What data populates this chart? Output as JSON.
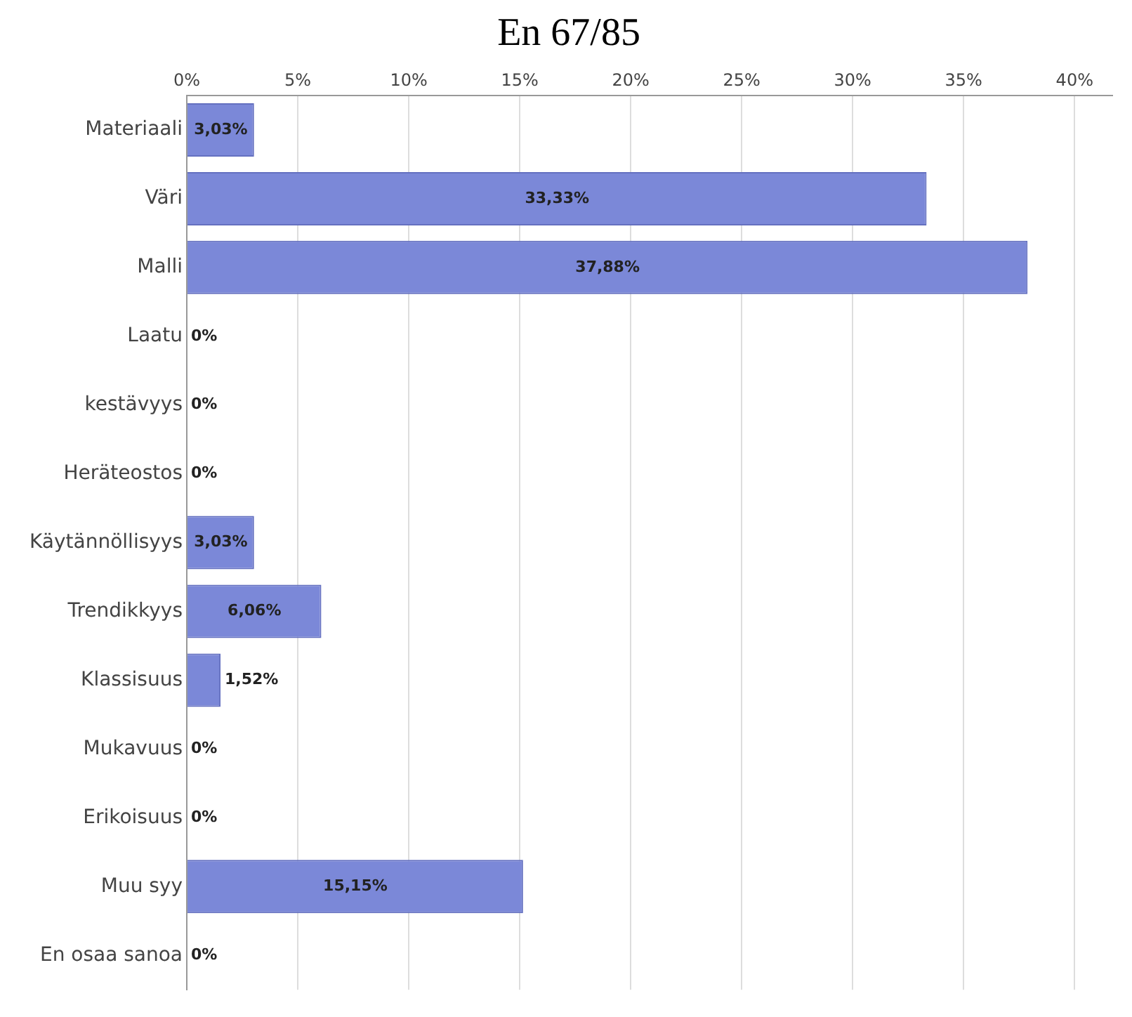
{
  "chart_data": {
    "type": "bar",
    "orientation": "horizontal",
    "title": "En 67/85",
    "categories": [
      "Materiaali",
      "Väri",
      "Malli",
      "Laatu",
      "kestävyys",
      "Heräteostos",
      "Käytännöllisyys",
      "Trendikkyys",
      "Klassisuus",
      "Mukavuus",
      "Erikoisuus",
      "Muu syy",
      "En osaa sanoa"
    ],
    "values": [
      3.03,
      33.33,
      37.88,
      0,
      0,
      0,
      3.03,
      6.06,
      1.52,
      0,
      0,
      15.15,
      0
    ],
    "value_labels": [
      "3,03%",
      "33,33%",
      "37,88%",
      "0%",
      "0%",
      "0%",
      "3,03%",
      "6,06%",
      "1,52%",
      "0%",
      "0%",
      "15,15%",
      "0%"
    ],
    "color": "#7b88d8",
    "xlim": [
      0,
      41.7
    ],
    "xticks": [
      {
        "value": 0,
        "label": "0%"
      },
      {
        "value": 5,
        "label": "5%"
      },
      {
        "value": 10,
        "label": "10%"
      },
      {
        "value": 15,
        "label": "15%"
      },
      {
        "value": 20,
        "label": "20%"
      },
      {
        "value": 25,
        "label": "25%"
      },
      {
        "value": 30,
        "label": "30%"
      },
      {
        "value": 35,
        "label": "35%"
      },
      {
        "value": 40,
        "label": "40%"
      }
    ],
    "grid": "x",
    "legend": false
  }
}
